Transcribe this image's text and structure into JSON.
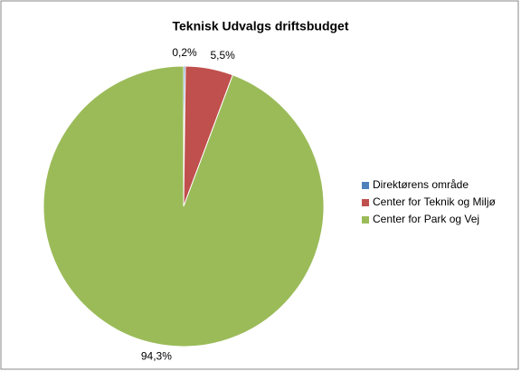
{
  "chart_data": {
    "type": "pie",
    "title": "Teknisk Udvalgs driftsbudget",
    "categories": [
      "Direktørens område",
      "Center for Teknik og Miljø",
      "Center for Park og Vej"
    ],
    "values": [
      0.2,
      5.5,
      94.3
    ],
    "value_labels": [
      "0,2%",
      "5,5%",
      "94,3%"
    ],
    "colors": [
      "#4f81bd",
      "#c0504d",
      "#9bbb59"
    ],
    "legend": "right"
  }
}
